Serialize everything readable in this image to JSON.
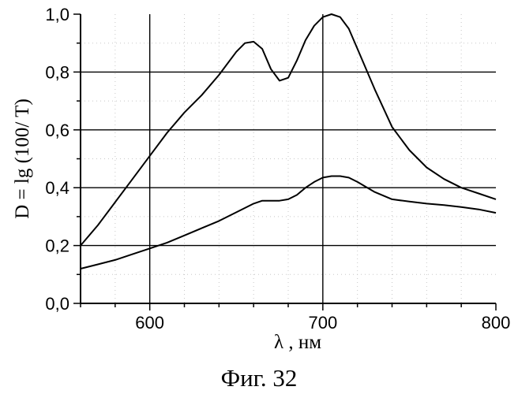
{
  "chart_data": {
    "type": "line",
    "xlabel": "λ , нм",
    "ylabel": "D = lg (100/ T)",
    "xlim": [
      560,
      800
    ],
    "ylim": [
      0.0,
      1.0
    ],
    "xticks": [
      600,
      700,
      800
    ],
    "yticks": [
      "0,0",
      "0,2",
      "0,4",
      "0,6",
      "0,8",
      "1,0"
    ],
    "yticks_values": [
      0.0,
      0.2,
      0.4,
      0.6,
      0.8,
      1.0
    ],
    "grid": true,
    "series": [
      {
        "x": [
          560,
          570,
          580,
          590,
          600,
          610,
          620,
          630,
          640,
          650,
          655,
          660,
          665,
          670,
          675,
          680,
          685,
          690,
          695,
          700,
          705,
          710,
          715,
          720,
          730,
          740,
          750,
          760,
          770,
          780,
          790,
          800
        ],
        "y": [
          0.2,
          0.27,
          0.35,
          0.43,
          0.51,
          0.59,
          0.66,
          0.72,
          0.79,
          0.87,
          0.9,
          0.905,
          0.88,
          0.81,
          0.77,
          0.78,
          0.84,
          0.91,
          0.96,
          0.99,
          1.0,
          0.99,
          0.95,
          0.88,
          0.74,
          0.61,
          0.53,
          0.47,
          0.43,
          0.4,
          0.38,
          0.36
        ]
      },
      {
        "x": [
          560,
          570,
          580,
          590,
          600,
          610,
          620,
          630,
          640,
          650,
          660,
          665,
          670,
          675,
          680,
          685,
          690,
          695,
          700,
          705,
          710,
          715,
          720,
          730,
          740,
          750,
          760,
          770,
          780,
          790,
          800
        ],
        "y": [
          0.12,
          0.135,
          0.15,
          0.17,
          0.19,
          0.21,
          0.235,
          0.26,
          0.285,
          0.315,
          0.345,
          0.355,
          0.355,
          0.355,
          0.36,
          0.375,
          0.4,
          0.42,
          0.435,
          0.44,
          0.44,
          0.435,
          0.42,
          0.385,
          0.36,
          0.352,
          0.345,
          0.34,
          0.333,
          0.325,
          0.313
        ]
      }
    ]
  },
  "caption": "Фиг. 32"
}
